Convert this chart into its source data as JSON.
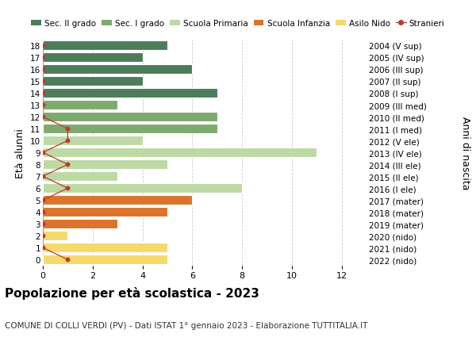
{
  "ages": [
    18,
    17,
    16,
    15,
    14,
    13,
    12,
    11,
    10,
    9,
    8,
    7,
    6,
    5,
    4,
    3,
    2,
    1,
    0
  ],
  "years": [
    "2004 (V sup)",
    "2005 (IV sup)",
    "2006 (III sup)",
    "2007 (II sup)",
    "2008 (I sup)",
    "2009 (III med)",
    "2010 (II med)",
    "2011 (I med)",
    "2012 (V ele)",
    "2013 (IV ele)",
    "2014 (III ele)",
    "2015 (II ele)",
    "2016 (I ele)",
    "2017 (mater)",
    "2018 (mater)",
    "2019 (mater)",
    "2020 (nido)",
    "2021 (nido)",
    "2022 (nido)"
  ],
  "bar_values": [
    5,
    4,
    6,
    4,
    7,
    3,
    7,
    7,
    4,
    11,
    5,
    3,
    8,
    6,
    5,
    3,
    1,
    5,
    5
  ],
  "bar_colors": [
    "#4d7c5a",
    "#4d7c5a",
    "#4d7c5a",
    "#4d7c5a",
    "#4d7c5a",
    "#7daa6e",
    "#7daa6e",
    "#7daa6e",
    "#bdd9a4",
    "#bdd9a4",
    "#bdd9a4",
    "#bdd9a4",
    "#bdd9a4",
    "#d9742a",
    "#d9742a",
    "#d9742a",
    "#f5d96b",
    "#f5d96b",
    "#f5d96b"
  ],
  "stranieri_x": [
    0,
    0,
    0,
    0,
    0,
    0,
    0,
    1,
    1,
    0,
    1,
    0,
    1,
    0,
    0,
    0,
    0,
    0,
    1
  ],
  "stranieri_y": [
    18,
    17,
    16,
    15,
    14,
    13,
    12,
    11,
    10,
    9,
    8,
    7,
    6,
    5,
    4,
    3,
    2,
    1,
    0
  ],
  "color_sec2": "#4d7c5a",
  "color_sec1": "#7daa6e",
  "color_prim": "#bdd9a4",
  "color_infanzia": "#d9742a",
  "color_nido": "#f5d96b",
  "color_stranieri": "#c0392b",
  "title": "Popolazione per età scolastica - 2023",
  "subtitle": "COMUNE DI COLLI VERDI (PV) - Dati ISTAT 1° gennaio 2023 - Elaborazione TUTTITALIA.IT",
  "ylabel_left": "Età alunni",
  "ylabel_right": "Anni di nascita",
  "background_color": "#ffffff",
  "grid_color": "#cccccc"
}
